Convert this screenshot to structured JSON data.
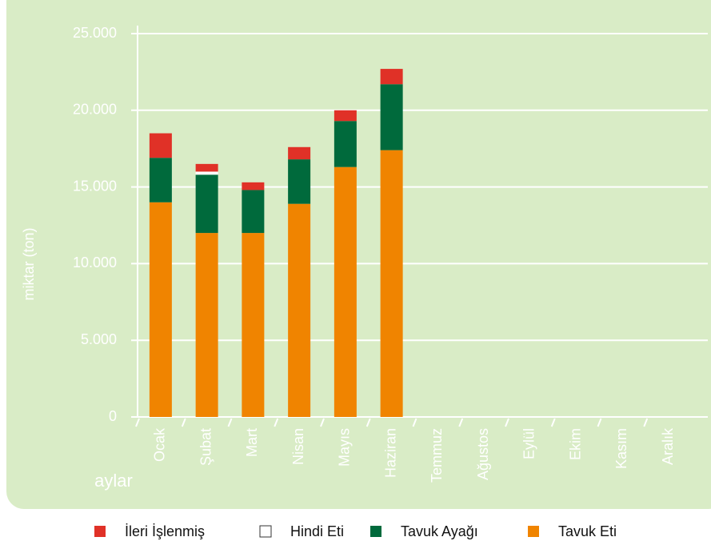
{
  "chart_data": {
    "type": "stacked-bar",
    "y_label": "miktar (ton)",
    "x_label": "aylar",
    "categories": [
      "Ocak",
      "Şubat",
      "Mart",
      "Nisan",
      "Mayıs",
      "Haziran",
      "Temmuz",
      "Ağustos",
      "Eylül",
      "Ekim",
      "Kasım",
      "Aralık"
    ],
    "series": [
      {
        "name": "İleri İşlenmiş",
        "color": "#e03127",
        "values": [
          1600,
          500,
          500,
          800,
          700,
          1000,
          null,
          null,
          null,
          null,
          null,
          null
        ]
      },
      {
        "name": "Hindi Eti",
        "color": "#ffffff",
        "values": [
          0,
          200,
          0,
          0,
          0,
          0,
          null,
          null,
          null,
          null,
          null,
          null
        ]
      },
      {
        "name": "Tavuk Ayağı",
        "color": "#006a3c",
        "values": [
          2900,
          3800,
          2800,
          2900,
          3000,
          4300,
          null,
          null,
          null,
          null,
          null,
          null
        ]
      },
      {
        "name": "Tavuk Eti",
        "color": "#f08400",
        "values": [
          14000,
          12000,
          12000,
          13900,
          16300,
          17400,
          null,
          null,
          null,
          null,
          null,
          null
        ]
      }
    ],
    "ylim": [
      0,
      25000
    ],
    "yticks": [
      0,
      {
        "value": 5000,
        "label": "5.000"
      },
      {
        "value": 10000,
        "label": "10.000"
      },
      {
        "value": 15000,
        "label": "15.000"
      },
      {
        "value": 20000,
        "label": "20.000"
      },
      {
        "value": 25000,
        "label": "25.000"
      }
    ],
    "grid": true
  }
}
